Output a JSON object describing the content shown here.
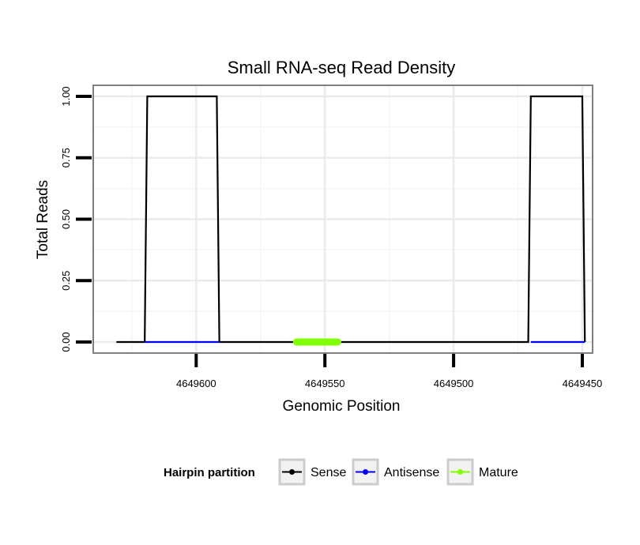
{
  "chart_data": {
    "type": "line",
    "title": "Small RNA-seq Read Density",
    "xlabel": "Genomic Position",
    "ylabel": "Total Reads",
    "xlim": [
      4649640,
      4649446
    ],
    "ylim": [
      -0.045,
      1.045
    ],
    "x_reversed": true,
    "grid": true,
    "x_ticks": [
      4649600,
      4649550,
      4649500,
      4649450
    ],
    "x_tick_labels": [
      "4649600",
      "4649550",
      "4649500",
      "4649450"
    ],
    "y_ticks": [
      0.0,
      0.25,
      0.5,
      0.75,
      1.0
    ],
    "y_tick_labels": [
      "0.00",
      "0.25",
      "0.50",
      "0.75",
      "1.00"
    ],
    "series": [
      {
        "name": "Sense",
        "color": "#000000",
        "x": [
          4649631,
          4649620,
          4649619,
          4649592,
          4649591,
          4649471,
          4649470,
          4649450,
          4649449
        ],
        "y": [
          0,
          0,
          1,
          1,
          0,
          0,
          1,
          1,
          0
        ]
      },
      {
        "name": "Antisense",
        "color": "#0000ff",
        "x": [
          4649620,
          4649591,
          4649470,
          4649449
        ],
        "y": [
          0,
          0,
          0,
          0
        ],
        "segments": [
          [
            4649620,
            4649591
          ],
          [
            4649470,
            4649449
          ]
        ]
      },
      {
        "name": "Mature",
        "color": "#80ff00",
        "x": [
          4649561,
          4649545
        ],
        "y": [
          0,
          0
        ]
      }
    ],
    "legend": {
      "title": "Hairpin partition",
      "placement": "bottom",
      "entries": [
        "Sense",
        "Antisense",
        "Mature"
      ]
    }
  }
}
